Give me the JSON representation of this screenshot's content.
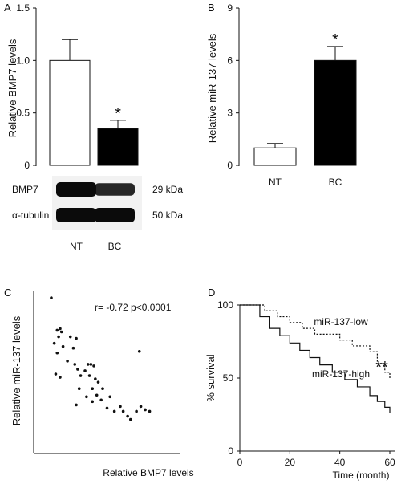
{
  "panels": {
    "A": {
      "letter": "A"
    },
    "B": {
      "letter": "B"
    },
    "C": {
      "letter": "C"
    },
    "D": {
      "letter": "D"
    }
  },
  "western_blot": {
    "rows": [
      {
        "label": "BMP7",
        "size": "29 kDa",
        "band_intensity": [
          1.0,
          0.75
        ]
      },
      {
        "label": "α-tubulin",
        "size": "50 kDa",
        "band_intensity": [
          1.0,
          1.0
        ]
      }
    ],
    "lanes": [
      "NT",
      "BC"
    ]
  },
  "chart_data": [
    {
      "panel": "A",
      "type": "bar",
      "categories": [
        "NT",
        "BC"
      ],
      "values": [
        1.0,
        0.35
      ],
      "errors": [
        0.2,
        0.08
      ],
      "bar_colors": [
        "#ffffff",
        "#000000"
      ],
      "significance": [
        "",
        "*"
      ],
      "ylabel": "Relative BMP7 levels",
      "ylim": [
        0,
        1.5
      ],
      "yticks": [
        "0",
        "0.5",
        "1.0",
        "1.5"
      ],
      "show_category_labels": false
    },
    {
      "panel": "B",
      "type": "bar",
      "categories": [
        "NT",
        "BC"
      ],
      "values": [
        1.0,
        6.0
      ],
      "errors": [
        0.25,
        0.8
      ],
      "bar_colors": [
        "#ffffff",
        "#000000"
      ],
      "significance": [
        "",
        "*"
      ],
      "ylabel": "Relative miR-137 levels",
      "ylim": [
        0,
        9
      ],
      "yticks": [
        "0",
        "3",
        "6",
        "9"
      ],
      "show_category_labels": true
    },
    {
      "panel": "C",
      "type": "scatter",
      "xlabel": "Relative BMP7 levels",
      "ylabel": "Relative miR-137 levels",
      "annotation": "r= -0.72 p<0.0001",
      "xlim": [
        0,
        1
      ],
      "ylim": [
        0,
        1
      ],
      "points": [
        [
          0.12,
          0.96
        ],
        [
          0.16,
          0.76
        ],
        [
          0.18,
          0.77
        ],
        [
          0.17,
          0.72
        ],
        [
          0.19,
          0.75
        ],
        [
          0.14,
          0.68
        ],
        [
          0.2,
          0.66
        ],
        [
          0.25,
          0.72
        ],
        [
          0.29,
          0.71
        ],
        [
          0.16,
          0.62
        ],
        [
          0.27,
          0.65
        ],
        [
          0.23,
          0.57
        ],
        [
          0.28,
          0.55
        ],
        [
          0.3,
          0.52
        ],
        [
          0.37,
          0.55
        ],
        [
          0.39,
          0.55
        ],
        [
          0.35,
          0.51
        ],
        [
          0.41,
          0.54
        ],
        [
          0.15,
          0.49
        ],
        [
          0.18,
          0.47
        ],
        [
          0.32,
          0.48
        ],
        [
          0.38,
          0.48
        ],
        [
          0.42,
          0.46
        ],
        [
          0.44,
          0.44
        ],
        [
          0.4,
          0.4
        ],
        [
          0.36,
          0.35
        ],
        [
          0.43,
          0.36
        ],
        [
          0.47,
          0.4
        ],
        [
          0.46,
          0.33
        ],
        [
          0.31,
          0.4
        ],
        [
          0.4,
          0.32
        ],
        [
          0.29,
          0.3
        ],
        [
          0.52,
          0.35
        ],
        [
          0.5,
          0.28
        ],
        [
          0.55,
          0.26
        ],
        [
          0.59,
          0.29
        ],
        [
          0.64,
          0.23
        ],
        [
          0.66,
          0.21
        ],
        [
          0.61,
          0.26
        ],
        [
          0.7,
          0.26
        ],
        [
          0.73,
          0.29
        ],
        [
          0.76,
          0.27
        ],
        [
          0.79,
          0.26
        ],
        [
          0.72,
          0.63
        ]
      ]
    },
    {
      "panel": "D",
      "type": "line",
      "step": true,
      "xlabel": "Time (month)",
      "ylabel": "% survival",
      "xlim": [
        0,
        60
      ],
      "ylim": [
        0,
        100
      ],
      "xticks": [
        "0",
        "20",
        "40",
        "60"
      ],
      "yticks": [
        "0",
        "50",
        "100"
      ],
      "significance": "**",
      "series": [
        {
          "name": "miR-137-low",
          "style": "dotted",
          "x": [
            0,
            10,
            15,
            20,
            25,
            30,
            40,
            45,
            52,
            55,
            58,
            60
          ],
          "y": [
            100,
            96,
            92,
            88,
            84,
            80,
            76,
            72,
            68,
            60,
            54,
            50
          ]
        },
        {
          "name": "miR-137-high",
          "style": "solid",
          "x": [
            0,
            8,
            12,
            16,
            20,
            24,
            28,
            32,
            37,
            42,
            47,
            52,
            55,
            58,
            60
          ],
          "y": [
            100,
            92,
            84,
            79,
            74,
            69,
            64,
            59,
            54,
            49,
            44,
            38,
            34,
            30,
            26
          ]
        }
      ]
    }
  ]
}
